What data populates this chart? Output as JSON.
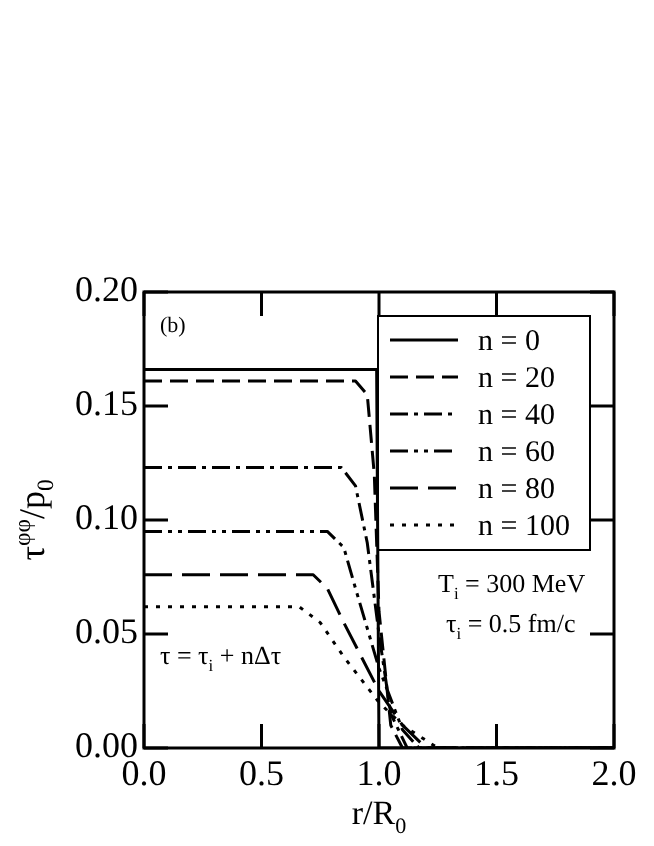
{
  "chart_data": {
    "type": "line",
    "xlabel": "r/R$_{0}$",
    "ylabel": "τ$^{φφ}$/p$_{0}$",
    "xlim": [
      0,
      2
    ],
    "xticks": [
      {
        "value": 0,
        "label": "0.0"
      },
      {
        "value": 0.5,
        "label": "0.5"
      },
      {
        "value": 1,
        "label": "1.0"
      },
      {
        "value": 1.5,
        "label": "1.5"
      },
      {
        "value": 2,
        "label": "2.0"
      }
    ],
    "ylim": [
      0,
      0.2
    ],
    "yticks": [
      {
        "value": 0,
        "label": "0.00"
      },
      {
        "value": 0.05,
        "label": "0.05"
      },
      {
        "value": 0.1,
        "label": "0.10"
      },
      {
        "value": 0.15,
        "label": "0.15"
      },
      {
        "value": 0.2,
        "label": "0.20"
      }
    ],
    "grid": false,
    "legend": "top right",
    "marker": "none",
    "annotations": [
      "(b)",
      "T$_{i}$ = 300 MeV",
      "τ$_{i}$ = 0.5 fm/c",
      "τ = τ$_{i}$ + nΔτ"
    ],
    "series": [
      {
        "name": "n = 0",
        "color": "#000000",
        "line_style": "solid",
        "x": [
          0,
          0.99,
          1.0,
          2.0
        ],
        "values": [
          0.166,
          0.166,
          0,
          0
        ]
      },
      {
        "name": "n = 20",
        "color": "#000000",
        "line_style": "dashed",
        "x": [
          0,
          0.9,
          0.95,
          0.98,
          1.0,
          1.05,
          1.1,
          2.0
        ],
        "values": [
          0.161,
          0.161,
          0.155,
          0.12,
          0.06,
          0.01,
          0,
          0
        ]
      },
      {
        "name": "n = 40",
        "color": "#000000",
        "line_style": "dashdot",
        "x": [
          0,
          0.84,
          0.9,
          0.95,
          1.0,
          1.05,
          1.12,
          2.0
        ],
        "values": [
          0.123,
          0.123,
          0.115,
          0.09,
          0.05,
          0.015,
          0,
          0
        ]
      },
      {
        "name": "n = 60",
        "color": "#000000",
        "line_style": "dashdotdot",
        "x": [
          0,
          0.78,
          0.85,
          0.9,
          1.0,
          1.1,
          1.17,
          2.0
        ],
        "values": [
          0.095,
          0.095,
          0.088,
          0.07,
          0.035,
          0.008,
          0,
          0
        ]
      },
      {
        "name": "n = 80",
        "color": "#000000",
        "line_style": "longdash",
        "x": [
          0,
          0.72,
          0.78,
          0.85,
          1.0,
          1.1,
          1.2,
          2.0
        ],
        "values": [
          0.076,
          0.076,
          0.07,
          0.055,
          0.025,
          0.01,
          0,
          0
        ]
      },
      {
        "name": "n = 100",
        "color": "#000000",
        "line_style": "dotted",
        "x": [
          0,
          0.66,
          0.75,
          0.85,
          1.0,
          1.1,
          1.25,
          2.0
        ],
        "values": [
          0.062,
          0.062,
          0.055,
          0.04,
          0.02,
          0.01,
          0,
          0
        ]
      }
    ]
  }
}
